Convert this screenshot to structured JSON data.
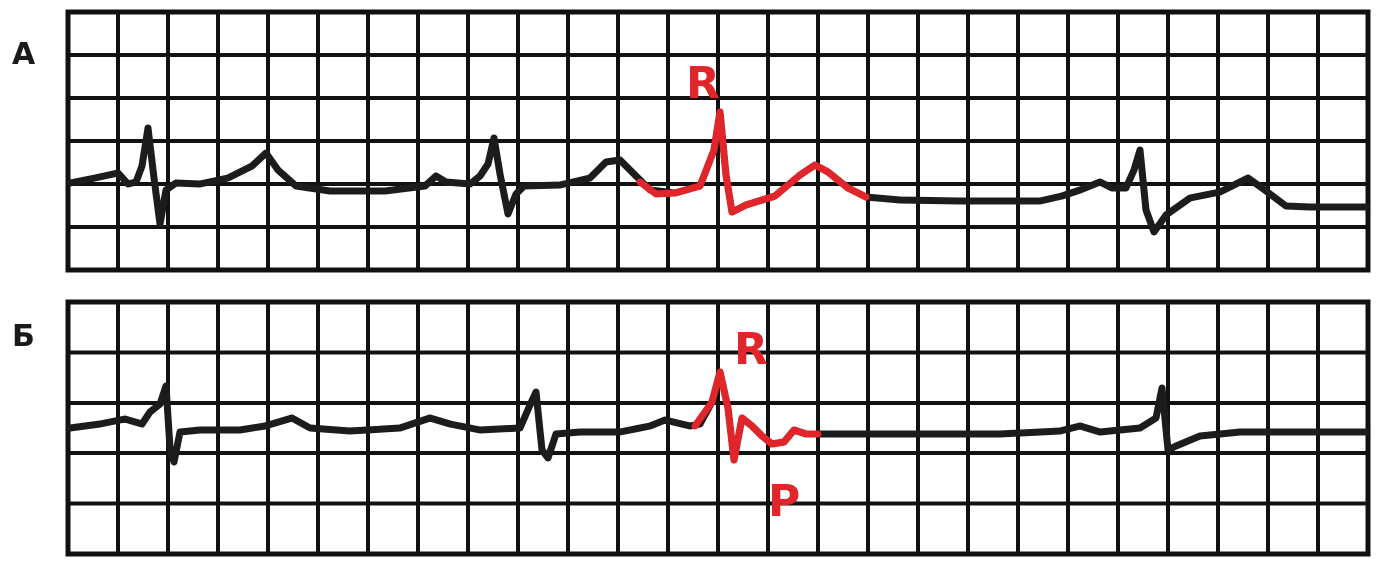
{
  "figure": {
    "accent_color": "#e0252b",
    "grid_color": "#111111",
    "trace_color": "#1c1c1c",
    "panels": [
      {
        "id": "panel-a",
        "label": "А",
        "annotations": [
          {
            "text": "R",
            "role": "r-wave"
          }
        ]
      },
      {
        "id": "panel-b",
        "label": "Б",
        "annotations": [
          {
            "text": "R",
            "role": "r-wave"
          },
          {
            "text": "P",
            "role": "p-wave"
          }
        ]
      }
    ]
  }
}
